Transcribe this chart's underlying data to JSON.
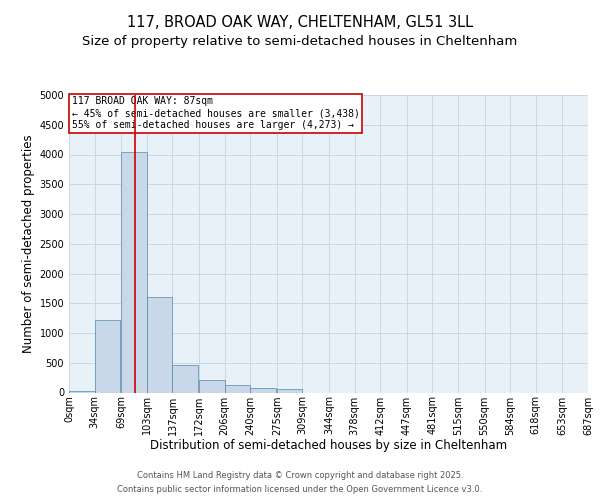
{
  "title_line1": "117, BROAD OAK WAY, CHELTENHAM, GL51 3LL",
  "title_line2": "Size of property relative to semi-detached houses in Cheltenham",
  "xlabel": "Distribution of semi-detached houses by size in Cheltenham",
  "ylabel": "Number of semi-detached properties",
  "footer_line1": "Contains HM Land Registry data © Crown copyright and database right 2025.",
  "footer_line2": "Contains public sector information licensed under the Open Government Licence v3.0.",
  "annotation_line1": "117 BROAD OAK WAY: 87sqm",
  "annotation_line2": "← 45% of semi-detached houses are smaller (3,438)",
  "annotation_line3": "55% of semi-detached houses are larger (4,273) →",
  "property_size": 87,
  "bin_edges": [
    0,
    34,
    69,
    103,
    137,
    172,
    206,
    240,
    275,
    309,
    344,
    378,
    412,
    447,
    481,
    515,
    550,
    584,
    618,
    653,
    687
  ],
  "bin_labels": [
    "0sqm",
    "34sqm",
    "69sqm",
    "103sqm",
    "137sqm",
    "172sqm",
    "206sqm",
    "240sqm",
    "275sqm",
    "309sqm",
    "344sqm",
    "378sqm",
    "412sqm",
    "447sqm",
    "481sqm",
    "515sqm",
    "550sqm",
    "584sqm",
    "618sqm",
    "653sqm",
    "687sqm"
  ],
  "bar_heights": [
    30,
    1220,
    4050,
    1600,
    470,
    210,
    130,
    80,
    60,
    0,
    0,
    0,
    0,
    0,
    0,
    0,
    0,
    0,
    0,
    0
  ],
  "bar_color": "#c8d8e8",
  "bar_edge_color": "#5588aa",
  "vline_x": 87,
  "vline_color": "#cc0000",
  "ylim": [
    0,
    5000
  ],
  "yticks": [
    0,
    500,
    1000,
    1500,
    2000,
    2500,
    3000,
    3500,
    4000,
    4500,
    5000
  ],
  "grid_color": "#c8d8e8",
  "background_color": "#e8f0f8",
  "annotation_box_edgecolor": "#cc0000",
  "title_fontsize": 10.5,
  "subtitle_fontsize": 9.5,
  "axis_label_fontsize": 8.5,
  "tick_fontsize": 7,
  "annotation_fontsize": 7,
  "footer_fontsize": 6
}
